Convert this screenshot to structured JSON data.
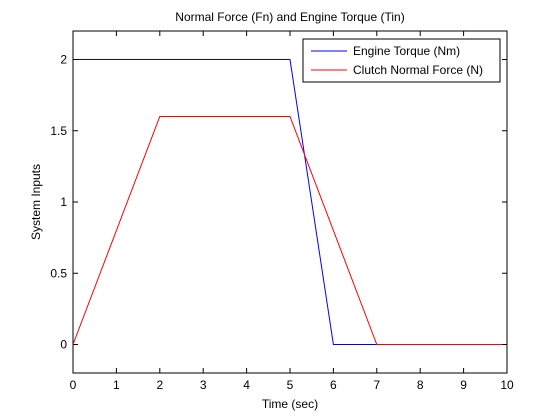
{
  "chart_data": {
    "type": "line",
    "title": "Normal Force (Fn) and Engine Torque (Tin)",
    "xlabel": "Time (sec)",
    "ylabel": "System Inputs",
    "xlim": [
      0,
      10
    ],
    "ylim": [
      -0.2,
      2.2
    ],
    "xticks": [
      0,
      1,
      2,
      3,
      4,
      5,
      6,
      7,
      8,
      9,
      10
    ],
    "xtick_labels": [
      "0",
      "1",
      "2",
      "3",
      "4",
      "5",
      "6",
      "7",
      "8",
      "9",
      "10"
    ],
    "yticks": [
      0,
      0.5,
      1,
      1.5,
      2
    ],
    "ytick_labels": [
      "0",
      "0.5",
      "1",
      "1.5",
      "2"
    ],
    "grid": false,
    "legend_position": "top-right",
    "series": [
      {
        "name": "Engine Torque (Nm)",
        "color": "#0000ff",
        "x": [
          0,
          5,
          6,
          10
        ],
        "y": [
          2,
          2,
          0,
          0
        ]
      },
      {
        "name": "Clutch Normal Force (N)",
        "color": "#ff0000",
        "x": [
          0,
          2,
          5,
          7,
          10
        ],
        "y": [
          0,
          1.6,
          1.6,
          0,
          0
        ]
      }
    ]
  }
}
